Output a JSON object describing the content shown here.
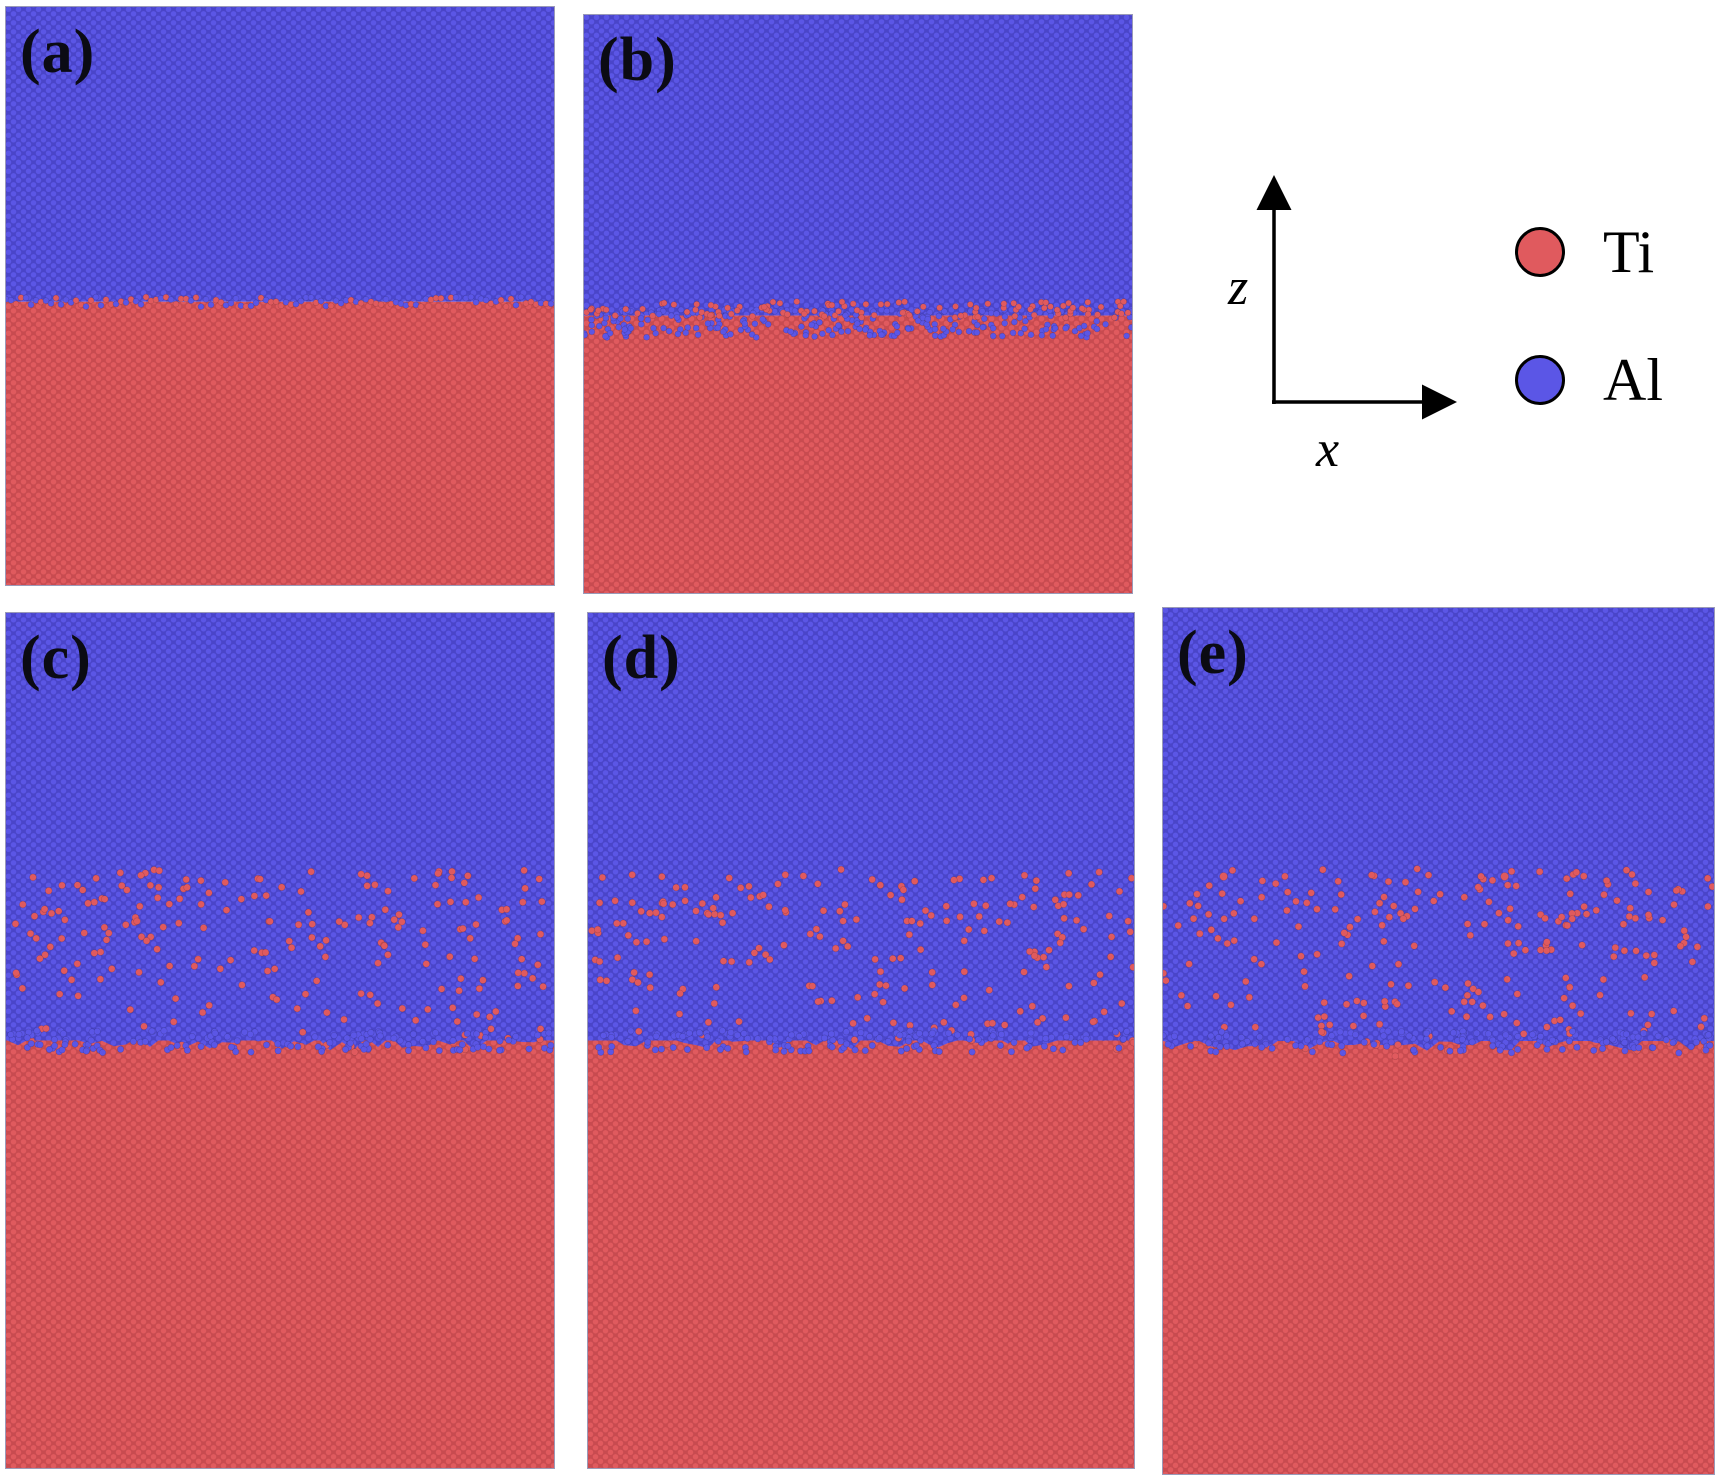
{
  "panels": [
    {
      "id": "a",
      "label": "(a)",
      "mixing": "narrow"
    },
    {
      "id": "b",
      "label": "(b)",
      "mixing": "narrow"
    },
    {
      "id": "c",
      "label": "(c)",
      "mixing": "wide"
    },
    {
      "id": "d",
      "label": "(d)",
      "mixing": "wide"
    },
    {
      "id": "e",
      "label": "(e)",
      "mixing": "wide"
    }
  ],
  "axes": {
    "z": "z",
    "x": "x"
  },
  "legend": [
    {
      "label": "Ti",
      "color": "#e05a5e"
    },
    {
      "label": "Al",
      "color": "#5b56e6"
    }
  ],
  "colors": {
    "ti": "#e05a5e",
    "al": "#5b56e6"
  }
}
